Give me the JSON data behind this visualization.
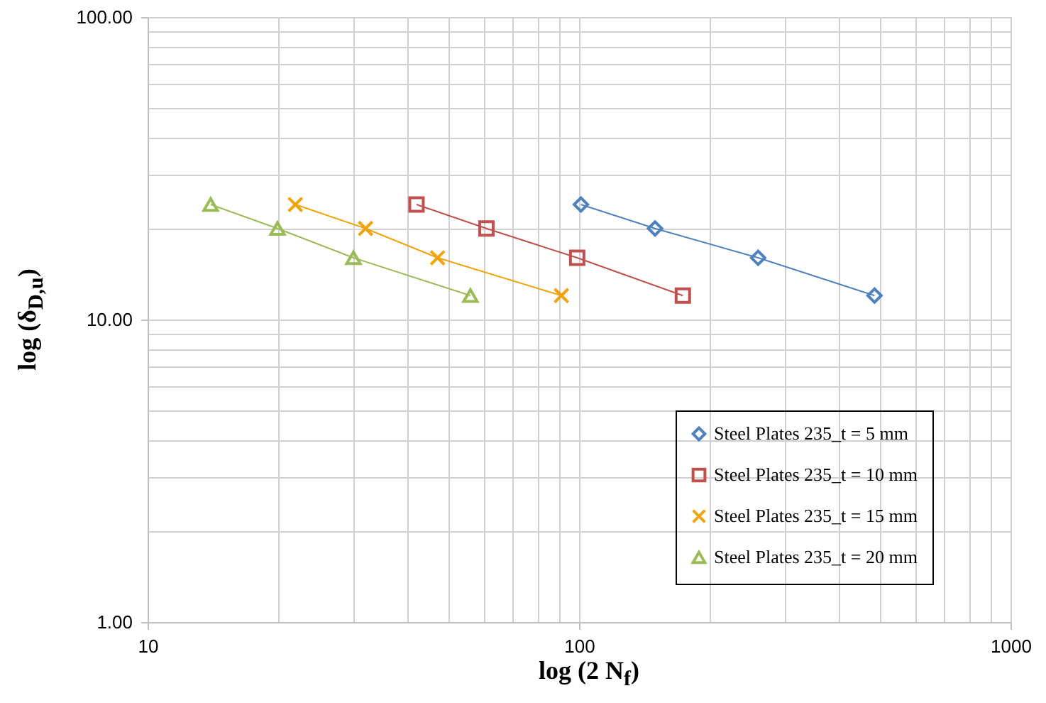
{
  "chart_data": {
    "type": "line",
    "xlabel": "log (2 N$_{f}$)",
    "ylabel": "log (δ$_{D,u}$)",
    "log": "xy",
    "grid": true,
    "legend": "bottom right",
    "xlim": [
      10,
      1000
    ],
    "ylim": [
      1,
      100
    ],
    "xticks": [
      10,
      {
        "value": 20,
        "label": null
      },
      {
        "value": 30,
        "label": null
      },
      {
        "value": 40,
        "label": null
      },
      {
        "value": 50,
        "label": null
      },
      {
        "value": 60,
        "label": null
      },
      {
        "value": 70,
        "label": null
      },
      {
        "value": 80,
        "label": null
      },
      {
        "value": 90,
        "label": null
      },
      100,
      {
        "value": 200,
        "label": null
      },
      {
        "value": 300,
        "label": null
      },
      {
        "value": 400,
        "label": null
      },
      {
        "value": 500,
        "label": null
      },
      {
        "value": 600,
        "label": null
      },
      {
        "value": 700,
        "label": null
      },
      {
        "value": 800,
        "label": null
      },
      {
        "value": 900,
        "label": null
      },
      1000
    ],
    "yticks": [
      {
        "value": 1,
        "label": "1.00"
      },
      {
        "value": 2,
        "label": null
      },
      {
        "value": 3,
        "label": null
      },
      {
        "value": 4,
        "label": null
      },
      {
        "value": 5,
        "label": null
      },
      {
        "value": 6,
        "label": null
      },
      {
        "value": 7,
        "label": null
      },
      {
        "value": 8,
        "label": null
      },
      {
        "value": 9,
        "label": null
      },
      {
        "value": 10,
        "label": "10.00"
      },
      {
        "value": 20,
        "label": null
      },
      {
        "value": 30,
        "label": null
      },
      {
        "value": 40,
        "label": null
      },
      {
        "value": 50,
        "label": null
      },
      {
        "value": 60,
        "label": null
      },
      {
        "value": 70,
        "label": null
      },
      {
        "value": 80,
        "label": null
      },
      {
        "value": 90,
        "label": null
      },
      {
        "value": 100,
        "label": "100.00"
      }
    ],
    "series": [
      {
        "name": "Steel Plates 235_t = 5 mm",
        "color": "#4f81bd",
        "marker": "diamond",
        "x": [
          101,
          150,
          260,
          484
        ],
        "values": [
          24,
          20,
          16,
          12
        ]
      },
      {
        "name": "Steel Plates 235_t = 10 mm",
        "color": "#c0504d",
        "marker": "square",
        "x": [
          42,
          61,
          99,
          174
        ],
        "values": [
          24,
          20,
          16,
          12
        ]
      },
      {
        "name": "Steel Plates 235_t = 15 mm",
        "color": "#f0a30a",
        "marker": "cross",
        "x": [
          22,
          32,
          47,
          91
        ],
        "values": [
          24,
          20,
          16,
          12
        ]
      },
      {
        "name": "Steel Plates 235_t = 20 mm",
        "color": "#9bbb59",
        "marker": "triangle",
        "x": [
          14,
          20,
          30,
          56
        ],
        "values": [
          24,
          20,
          16,
          12
        ]
      }
    ]
  }
}
